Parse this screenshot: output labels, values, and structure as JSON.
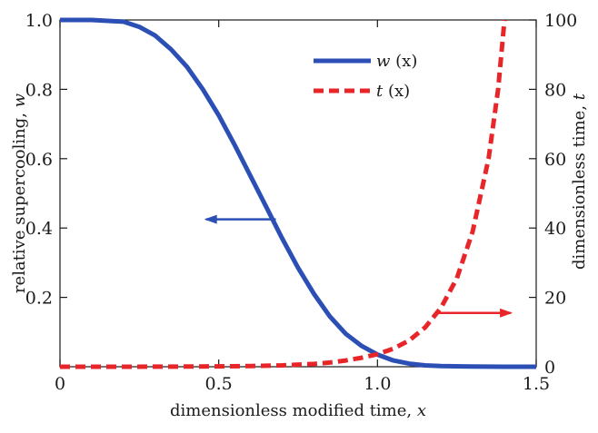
{
  "chart_data": {
    "type": "line",
    "xlabel_main": "dimensionless modified time, ",
    "xlabel_var": "x",
    "ylabel_left_main": "relative supercooling, ",
    "ylabel_left_var": "w",
    "ylabel_right_main": "dimensionless time, ",
    "ylabel_right_var": "t",
    "xlim": [
      0,
      1.5
    ],
    "ylim_left": [
      0,
      1.0
    ],
    "ylim_right": [
      0,
      100
    ],
    "x_ticks": [
      0,
      0.5,
      1.0,
      1.5
    ],
    "x_tick_labels": [
      "0",
      "0.5",
      "1.0",
      "1.5"
    ],
    "y_left_ticks": [
      0.2,
      0.4,
      0.6,
      0.8,
      1.0
    ],
    "y_left_tick_labels": [
      "0.2",
      "0.4",
      "0.6",
      "0.8",
      "1.0"
    ],
    "y_right_ticks": [
      0,
      20,
      40,
      60,
      80,
      100
    ],
    "y_right_tick_labels": [
      "0",
      "20",
      "40",
      "60",
      "80",
      "100"
    ],
    "legend": {
      "position": "top-right",
      "entries": [
        {
          "main": "w",
          "arg": " (x)"
        },
        {
          "main": "t",
          "arg": " (x)"
        }
      ]
    },
    "series": [
      {
        "axis": "left",
        "color": "#2b4fb5",
        "style": "solid",
        "x": [
          0,
          0.1,
          0.2,
          0.25,
          0.3,
          0.35,
          0.4,
          0.45,
          0.5,
          0.55,
          0.6,
          0.65,
          0.7,
          0.75,
          0.8,
          0.85,
          0.9,
          0.95,
          1.0,
          1.05,
          1.1,
          1.15,
          1.2,
          1.3,
          1.4,
          1.5
        ],
        "values": [
          1.0,
          1.0,
          0.995,
          0.98,
          0.955,
          0.915,
          0.865,
          0.8,
          0.725,
          0.64,
          0.55,
          0.46,
          0.37,
          0.285,
          0.21,
          0.145,
          0.095,
          0.06,
          0.035,
          0.018,
          0.009,
          0.004,
          0.002,
          0.0005,
          0.0001,
          0.0
        ]
      },
      {
        "axis": "right",
        "color": "#e8262a",
        "style": "dashed",
        "x": [
          0,
          0.2,
          0.4,
          0.5,
          0.6,
          0.7,
          0.8,
          0.85,
          0.9,
          0.95,
          1.0,
          1.05,
          1.1,
          1.15,
          1.2,
          1.25,
          1.3,
          1.35,
          1.38,
          1.4
        ],
        "values": [
          0,
          0,
          0.05,
          0.1,
          0.2,
          0.4,
          0.8,
          1.2,
          1.8,
          2.6,
          3.6,
          5.2,
          7.6,
          11.3,
          17.0,
          25.5,
          39.0,
          60.0,
          80.0,
          100.0
        ]
      }
    ],
    "annotations": [
      {
        "type": "arrow",
        "direction": "left",
        "color": "#2b4fb5",
        "from": [
          0.68,
          0.425
        ],
        "to": [
          0.46,
          0.425
        ],
        "axis": "left"
      },
      {
        "type": "arrow",
        "direction": "right",
        "color": "#e8262a",
        "from": [
          1.18,
          15.5
        ],
        "to": [
          1.42,
          15.5
        ],
        "axis": "right"
      }
    ]
  }
}
